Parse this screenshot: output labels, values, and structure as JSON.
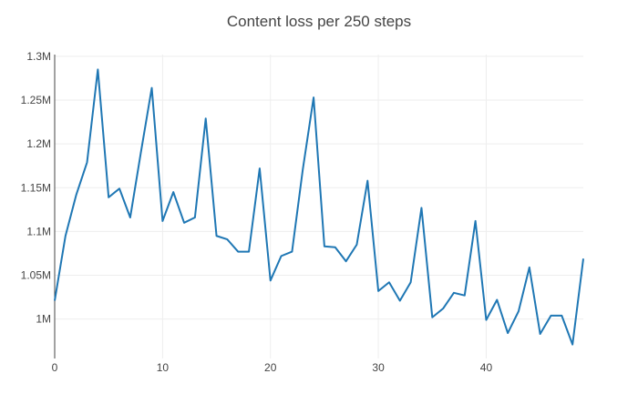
{
  "chart_data": {
    "type": "line",
    "title": "Content loss per 250 steps",
    "xlabel": "",
    "ylabel": "",
    "xlim": [
      0,
      49
    ],
    "ylim": [
      955000,
      1302000
    ],
    "x_ticks": [
      0,
      10,
      20,
      30,
      40
    ],
    "x_tick_labels": [
      "0",
      "10",
      "20",
      "30",
      "40"
    ],
    "y_ticks": [
      1000000,
      1050000,
      1100000,
      1150000,
      1200000,
      1250000,
      1300000
    ],
    "y_tick_labels": [
      "1M",
      "1.05M",
      "1.1M",
      "1.15M",
      "1.2M",
      "1.25M",
      "1.3M"
    ],
    "grid": true,
    "legend": false,
    "series": [
      {
        "color": "#1f77b4",
        "x": [
          0,
          1,
          2,
          3,
          4,
          5,
          6,
          7,
          8,
          9,
          10,
          11,
          12,
          13,
          14,
          15,
          16,
          17,
          18,
          19,
          20,
          21,
          22,
          23,
          24,
          25,
          26,
          27,
          28,
          29,
          30,
          31,
          32,
          33,
          34,
          35,
          36,
          37,
          38,
          39,
          40,
          41,
          42,
          43,
          44,
          45,
          46,
          47,
          48,
          49
        ],
        "values": [
          1021000,
          1095000,
          1142000,
          1179000,
          1285000,
          1139000,
          1149000,
          1116000,
          1191000,
          1264000,
          1112000,
          1145000,
          1110000,
          1116000,
          1229000,
          1095000,
          1091000,
          1077000,
          1077000,
          1172000,
          1044000,
          1072000,
          1077000,
          1171000,
          1253000,
          1083000,
          1082000,
          1066000,
          1085000,
          1158000,
          1032000,
          1042000,
          1021000,
          1042000,
          1127000,
          1002000,
          1012000,
          1030000,
          1027000,
          1112000,
          999000,
          1022000,
          984000,
          1009000,
          1059000,
          983000,
          1004000,
          1004000,
          971000,
          1069000
        ]
      }
    ]
  }
}
